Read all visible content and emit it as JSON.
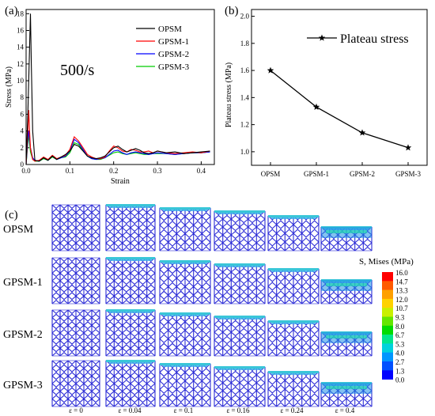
{
  "panels": {
    "a": "(a)",
    "b": "(b)",
    "c": "(c)"
  },
  "panel_a": {
    "rate_label": "500/s",
    "xlabel": "Strain",
    "ylabel": "Stress (MPa)",
    "xticks": [
      "0.0",
      "0.1",
      "0.2",
      "0.3",
      "0.4"
    ],
    "yticks": [
      "0",
      "2",
      "4",
      "6",
      "8",
      "10",
      "12",
      "14",
      "16",
      "18"
    ]
  },
  "panel_b": {
    "legend": "Plateau stress",
    "ylabel": "Plateau stress (MPa)",
    "yticks": [
      "1.0",
      "1.2",
      "1.4",
      "1.6",
      "1.8",
      "2.0"
    ]
  },
  "panel_c": {
    "rows": [
      "OPSM",
      "GPSM-1",
      "GPSM-2",
      "GPSM-3"
    ],
    "strains": [
      "ε = 0",
      "ε = 0.04",
      "ε = 0.1",
      "ε = 0.16",
      "ε = 0.24",
      "ε = 0.4"
    ],
    "colorbar_title": "S, Mises (MPa)",
    "colorbar_values": [
      "16.0",
      "14.7",
      "13.3",
      "12.0",
      "10.7",
      "9.3",
      "8.0",
      "6.7",
      "5.3",
      "4.0",
      "2.7",
      "1.3",
      "0.0"
    ],
    "colorbar_colors": [
      "#ff0000",
      "#ff5a00",
      "#ffa000",
      "#ffd200",
      "#c8f000",
      "#64e600",
      "#00dc00",
      "#00e68c",
      "#00d2dc",
      "#0096ff",
      "#0050ff",
      "#0000ff"
    ]
  },
  "chart_data": [
    {
      "type": "line",
      "xlabel": "Strain",
      "ylabel": "Stress (MPa)",
      "xlim": [
        0,
        0.43
      ],
      "ylim": [
        0,
        18.5
      ],
      "legend_position": "top-right",
      "series": [
        {
          "name": "OPSM",
          "color": "#000000",
          "x": [
            0,
            0.002,
            0.004,
            0.006,
            0.008,
            0.01,
            0.012,
            0.015,
            0.02,
            0.03,
            0.04,
            0.05,
            0.06,
            0.07,
            0.08,
            0.09,
            0.1,
            0.11,
            0.12,
            0.13,
            0.14,
            0.15,
            0.16,
            0.17,
            0.18,
            0.19,
            0.2,
            0.21,
            0.22,
            0.23,
            0.24,
            0.25,
            0.26,
            0.27,
            0.28,
            0.29,
            0.3,
            0.32,
            0.34,
            0.36,
            0.38,
            0.4,
            0.42
          ],
          "y": [
            0,
            3,
            6,
            10,
            14,
            18,
            12,
            4,
            0.5,
            0.4,
            0.8,
            0.5,
            1.0,
            0.6,
            0.9,
            1.2,
            1.6,
            2.4,
            2.2,
            1.6,
            1.0,
            0.8,
            0.7,
            0.8,
            1.0,
            1.5,
            2.0,
            2.2,
            1.8,
            1.5,
            1.7,
            1.9,
            1.7,
            1.4,
            1.3,
            1.4,
            1.6,
            1.4,
            1.5,
            1.3,
            1.4,
            1.5,
            1.6
          ]
        },
        {
          "name": "GPSM-1",
          "color": "#ff0000",
          "x": [
            0,
            0.002,
            0.004,
            0.006,
            0.008,
            0.01,
            0.015,
            0.02,
            0.03,
            0.04,
            0.05,
            0.06,
            0.07,
            0.08,
            0.09,
            0.1,
            0.11,
            0.12,
            0.13,
            0.14,
            0.15,
            0.16,
            0.17,
            0.18,
            0.19,
            0.2,
            0.21,
            0.22,
            0.23,
            0.24,
            0.25,
            0.26,
            0.27,
            0.28,
            0.29,
            0.3,
            0.32,
            0.34,
            0.36,
            0.38,
            0.4,
            0.42
          ],
          "y": [
            0,
            2,
            4,
            6.5,
            4,
            2,
            0.6,
            0.4,
            0.5,
            0.9,
            0.6,
            1.1,
            0.7,
            0.9,
            1.1,
            1.8,
            3.3,
            2.8,
            2.0,
            1.2,
            0.9,
            0.7,
            0.7,
            0.9,
            1.6,
            2.2,
            2.0,
            1.6,
            1.5,
            1.8,
            1.7,
            1.5,
            1.5,
            1.6,
            1.4,
            1.6,
            1.4,
            1.3,
            1.4,
            1.5,
            1.4,
            1.6
          ]
        },
        {
          "name": "GPSM-2",
          "color": "#0000ff",
          "x": [
            0,
            0.002,
            0.004,
            0.006,
            0.008,
            0.01,
            0.015,
            0.02,
            0.03,
            0.04,
            0.05,
            0.06,
            0.07,
            0.08,
            0.09,
            0.1,
            0.11,
            0.12,
            0.13,
            0.14,
            0.15,
            0.16,
            0.17,
            0.18,
            0.19,
            0.2,
            0.21,
            0.22,
            0.23,
            0.24,
            0.25,
            0.26,
            0.27,
            0.28,
            0.29,
            0.3,
            0.32,
            0.34,
            0.36,
            0.38,
            0.4,
            0.42
          ],
          "y": [
            0,
            1.5,
            3,
            4,
            3,
            2,
            0.8,
            0.5,
            0.4,
            0.8,
            0.5,
            1.0,
            0.6,
            0.8,
            1.0,
            1.6,
            3.0,
            2.6,
            1.8,
            1.0,
            0.7,
            0.6,
            0.7,
            0.8,
            1.2,
            1.6,
            1.7,
            1.4,
            1.2,
            1.4,
            1.5,
            1.4,
            1.3,
            1.2,
            1.3,
            1.4,
            1.3,
            1.2,
            1.3,
            1.4,
            1.4,
            1.5
          ]
        },
        {
          "name": "GPSM-3",
          "color": "#00cc00",
          "x": [
            0,
            0.002,
            0.004,
            0.006,
            0.008,
            0.01,
            0.015,
            0.02,
            0.03,
            0.04,
            0.05,
            0.06,
            0.07,
            0.08,
            0.09,
            0.1,
            0.11,
            0.12,
            0.13,
            0.14,
            0.15,
            0.16,
            0.17,
            0.18,
            0.19,
            0.2,
            0.21,
            0.22,
            0.23,
            0.24,
            0.25,
            0.26,
            0.27,
            0.28,
            0.29,
            0.3,
            0.32,
            0.34,
            0.36,
            0.38,
            0.4,
            0.42
          ],
          "y": [
            0,
            1.2,
            2.5,
            3.5,
            2.5,
            1.5,
            0.6,
            0.4,
            0.4,
            0.7,
            0.5,
            0.9,
            0.6,
            0.8,
            0.9,
            1.4,
            2.6,
            2.4,
            1.7,
            1.0,
            0.7,
            0.6,
            0.6,
            0.8,
            1.1,
            1.4,
            1.5,
            1.3,
            1.2,
            1.3,
            1.4,
            1.3,
            1.2,
            1.2,
            1.3,
            1.3,
            1.3,
            1.2,
            1.3,
            1.4,
            1.4,
            1.5
          ]
        }
      ]
    },
    {
      "type": "line",
      "ylabel": "Plateau stress (MPa)",
      "ylim": [
        0.9,
        2.05
      ],
      "legend_position": "top-right",
      "categories": [
        "OPSM",
        "GPSM-1",
        "GPSM-2",
        "GPSM-3"
      ],
      "series": [
        {
          "name": "Plateau stress",
          "color": "#000000",
          "marker": "star",
          "values": [
            1.6,
            1.33,
            1.14,
            1.03
          ]
        }
      ]
    }
  ]
}
